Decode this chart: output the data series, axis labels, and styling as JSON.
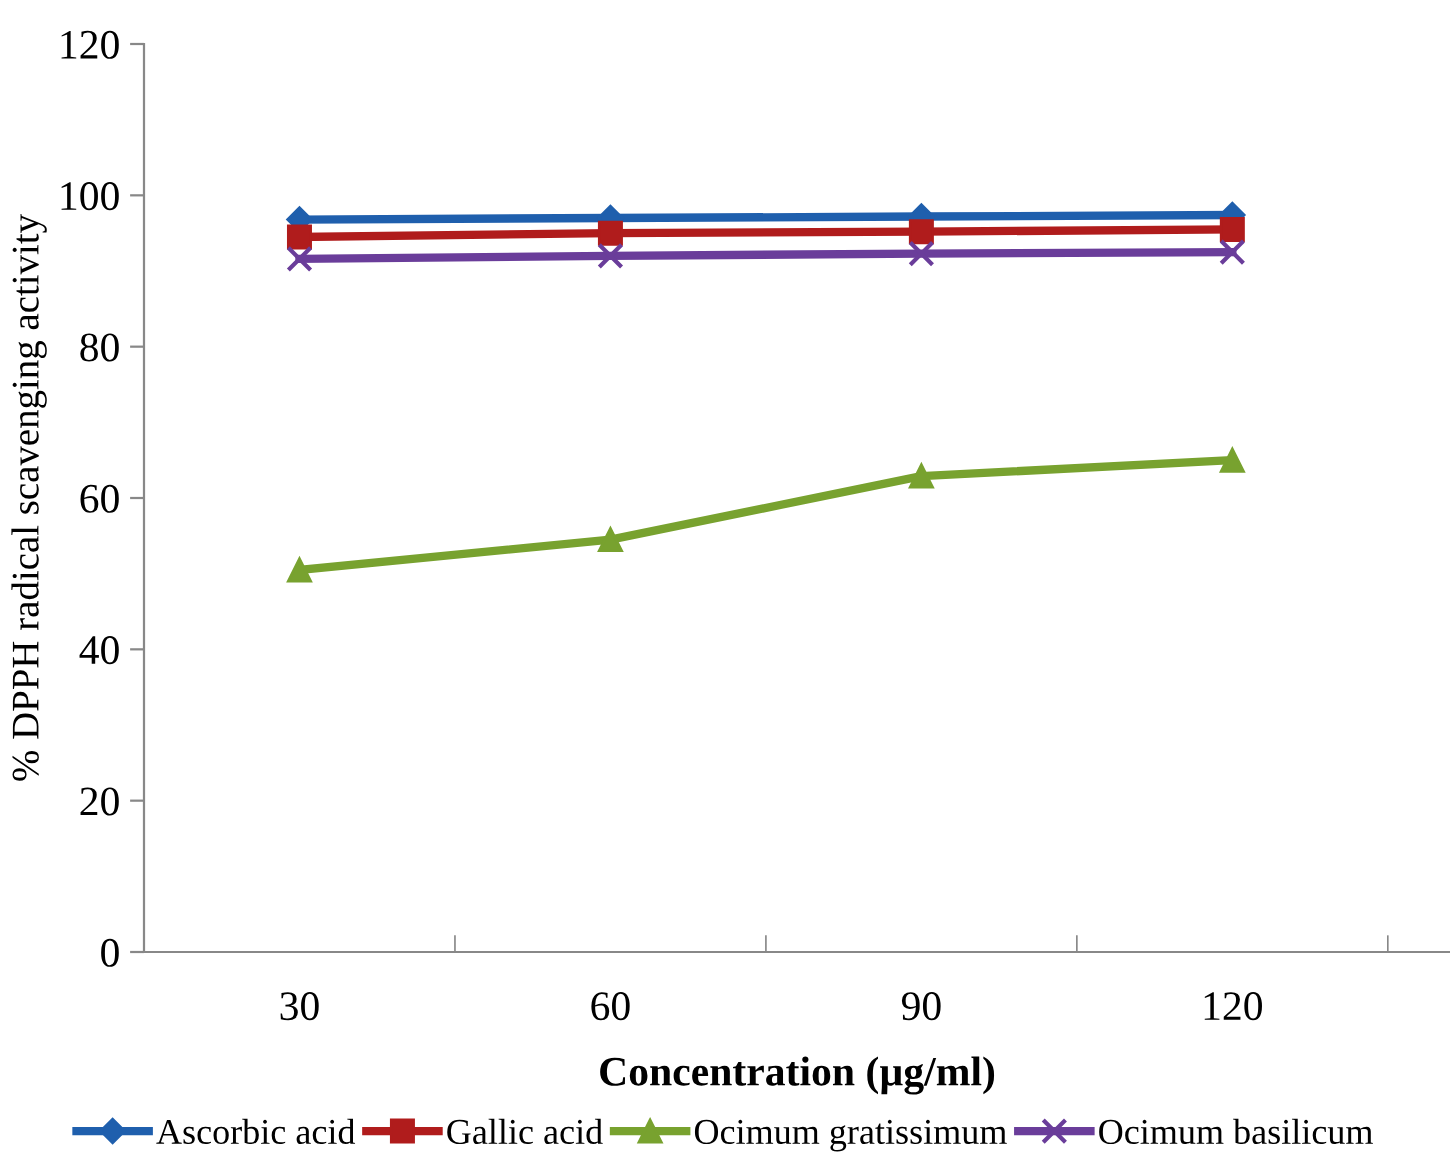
{
  "chart_data": {
    "type": "line",
    "xlabel": "Concentration (µg/ml)",
    "ylabel": "% DPPH radical scavenging activity",
    "categories": [
      "30",
      "60",
      "90",
      "120"
    ],
    "series": [
      {
        "name": "Ascorbic acid",
        "color": "#1f5fad",
        "marker": "diamond",
        "values": [
          96.8,
          97.0,
          97.2,
          97.4
        ]
      },
      {
        "name": "Gallic acid",
        "color": "#b01c1c",
        "marker": "square",
        "values": [
          94.5,
          95.0,
          95.2,
          95.5
        ]
      },
      {
        "name": "Ocimum gratissimum",
        "color": "#78a22f",
        "marker": "triangle",
        "values": [
          50.5,
          54.5,
          62.9,
          65.0
        ]
      },
      {
        "name": "Ocimum basilicum",
        "color": "#6a3d9a",
        "marker": "cross",
        "values": [
          91.6,
          92.0,
          92.3,
          92.5
        ]
      }
    ],
    "ylim": [
      0,
      120
    ],
    "yticks": [
      0,
      20,
      40,
      60,
      80,
      100,
      120
    ],
    "grid": false,
    "legend": "bottom",
    "line_style": "solid"
  }
}
